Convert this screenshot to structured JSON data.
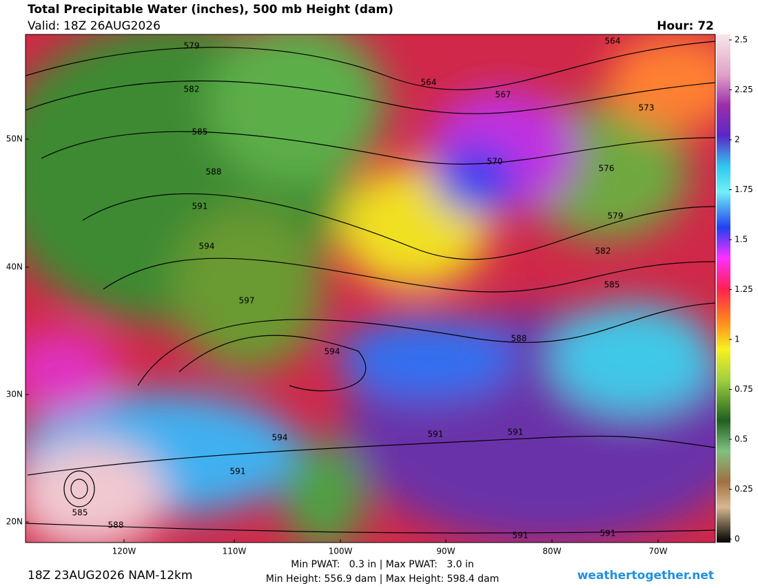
{
  "header": {
    "title": "Total Precipitable Water (inches), 500 mb Height (dam)",
    "valid": "Valid: 18Z 26AUG2026",
    "hour": "Hour: 72"
  },
  "colorbar": {
    "ticks": [
      2.5,
      2.25,
      2,
      1.75,
      1.5,
      1.25,
      1,
      0.75,
      0.5,
      0.25,
      0
    ]
  },
  "map": {
    "lat_labels": [
      "50N",
      "40N",
      "30N",
      "20N"
    ],
    "lon_labels": [
      "120W",
      "110W",
      "100W",
      "90W",
      "80W",
      "70W"
    ],
    "contour_labels": [
      564,
      564,
      567,
      573,
      576,
      570,
      579,
      582,
      585,
      588,
      591,
      594,
      597,
      594,
      594,
      591,
      585,
      588,
      579,
      582,
      585,
      588,
      591,
      591,
      591,
      591
    ]
  },
  "footer": {
    "run": "18Z 23AUG2026 NAM-12km",
    "pwat": "Min PWAT:   0.3 in | Max PWAT:   3.0 in",
    "height": "Min Height: 556.9 dam | Max Height: 598.4 dam",
    "site": "weathertogether.net"
  }
}
